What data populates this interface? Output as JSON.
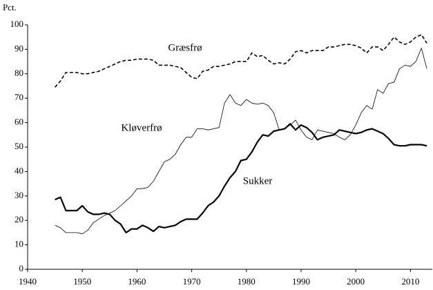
{
  "chart_data": {
    "type": "line",
    "y_label": "Pct.",
    "x": [
      1945,
      1946,
      1947,
      1948,
      1949,
      1950,
      1951,
      1952,
      1953,
      1954,
      1955,
      1956,
      1957,
      1958,
      1959,
      1960,
      1961,
      1962,
      1963,
      1964,
      1965,
      1966,
      1967,
      1968,
      1969,
      1970,
      1971,
      1972,
      1973,
      1974,
      1975,
      1976,
      1977,
      1978,
      1979,
      1980,
      1981,
      1982,
      1983,
      1984,
      1985,
      1986,
      1987,
      1988,
      1989,
      1990,
      1991,
      1992,
      1993,
      1994,
      1995,
      1996,
      1997,
      1998,
      1999,
      2000,
      2001,
      2002,
      2003,
      2004,
      2005,
      2006,
      2007,
      2008,
      2009,
      2010,
      2011,
      2012,
      2013
    ],
    "series": [
      {
        "name": "Græsfrø",
        "color": "#000000",
        "line_width": 1.6,
        "dash": true,
        "values": [
          74.5,
          77,
          80.5,
          80.5,
          80.5,
          80,
          80,
          80.5,
          81,
          82,
          83,
          84,
          85,
          85.5,
          85.5,
          86,
          86,
          86,
          85.5,
          83.5,
          83.5,
          83.5,
          83,
          82.5,
          80.5,
          78.5,
          78,
          81,
          81.5,
          83,
          83,
          83.5,
          84,
          85,
          85,
          85,
          88.5,
          87,
          87.5,
          85.5,
          84,
          84.5,
          84,
          86,
          89,
          89.5,
          88.5,
          89.5,
          89.5,
          89.5,
          91,
          91,
          91.5,
          92,
          92,
          91.5,
          90.5,
          88.5,
          91,
          91,
          89.5,
          92,
          95,
          93,
          92,
          93,
          95,
          96,
          92.5
        ]
      },
      {
        "name": "Kløverfrø",
        "color": "#000000",
        "line_width": 0.8,
        "dash": false,
        "values": [
          18,
          17,
          15,
          15,
          15,
          14.5,
          16,
          19,
          20.5,
          22,
          23,
          24,
          26,
          28,
          30,
          33,
          33,
          33.5,
          36,
          40,
          44,
          45,
          47,
          51,
          54,
          54,
          57.5,
          57.5,
          57,
          57.5,
          58,
          68,
          71.5,
          68,
          67,
          69.5,
          68,
          67.5,
          68,
          67,
          64,
          57,
          57.5,
          59,
          61,
          57,
          54,
          53,
          57,
          56.5,
          56,
          55.5,
          54,
          53,
          55,
          59,
          64,
          67,
          65.5,
          73.5,
          72,
          76,
          76.5,
          82,
          83.5,
          83,
          85,
          90.5,
          82
        ]
      },
      {
        "name": "Sukker",
        "color": "#000000",
        "line_width": 2.2,
        "dash": false,
        "values": [
          28.5,
          29.5,
          24,
          24,
          24,
          26,
          23.5,
          22.5,
          22.5,
          23,
          22.5,
          20,
          18.5,
          15,
          16.5,
          16.5,
          18,
          17,
          15.5,
          17.5,
          17,
          17.5,
          18,
          19.5,
          20.5,
          20.5,
          20.5,
          23,
          26,
          27.5,
          30,
          34,
          37.5,
          40,
          44.5,
          45,
          48,
          52,
          55,
          54.5,
          56.5,
          57,
          57.5,
          59.5,
          57,
          59,
          58,
          56,
          53,
          54,
          54.5,
          55,
          57,
          56.5,
          56,
          55.5,
          56,
          57,
          57.5,
          56.5,
          55.5,
          53.5,
          51,
          50.5,
          50.5,
          51,
          51,
          51,
          50.5
        ]
      }
    ],
    "xlim": [
      1940,
      2014
    ],
    "xticks": [
      1940,
      1950,
      1960,
      1970,
      1980,
      1990,
      2000,
      2010
    ],
    "ylim": [
      0,
      100
    ],
    "yticks": [
      0,
      10,
      20,
      30,
      40,
      50,
      60,
      70,
      80,
      90,
      100
    ],
    "grid": false
  }
}
